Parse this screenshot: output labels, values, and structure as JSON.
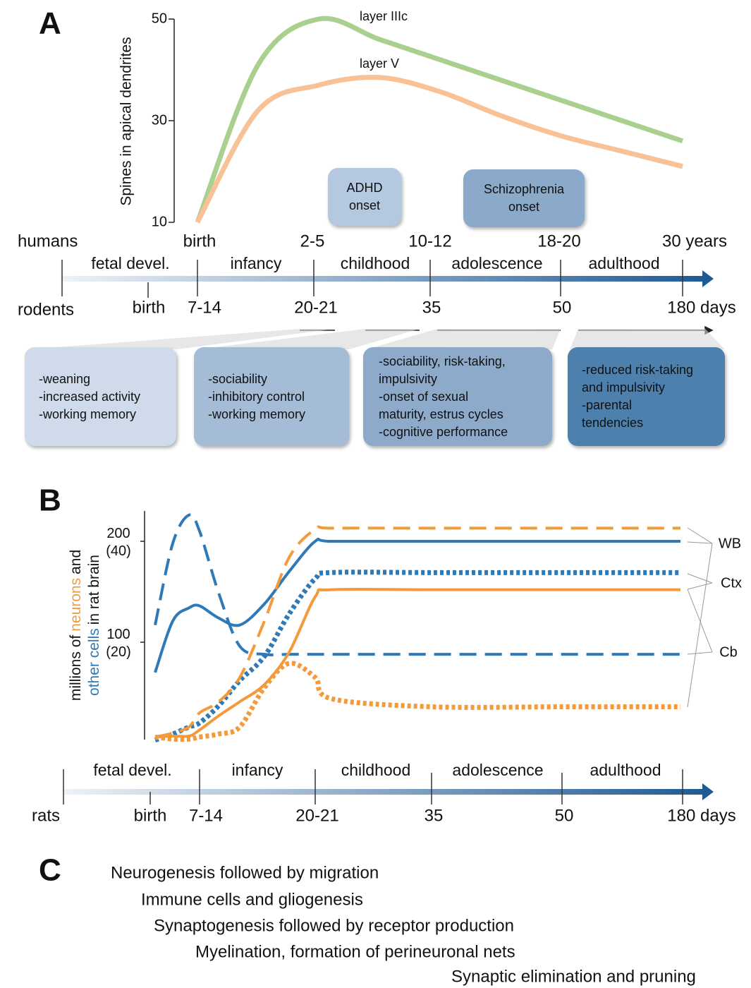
{
  "panel_labels": [
    "A",
    "B",
    "C"
  ],
  "chart_data": [
    {
      "type": "line",
      "ylabel": "Spines in apical dendrites",
      "ylim": [
        10,
        50
      ],
      "yticks": [
        10,
        30,
        50
      ],
      "categories": [
        "birth",
        null,
        "2-5",
        null,
        "10-12",
        null,
        "18-20",
        null,
        "30 years"
      ],
      "series": [
        {
          "name": "layer IIIc",
          "color": "#a9d08e",
          "values": [
            10,
            41,
            50,
            46,
            42,
            38,
            34,
            30,
            26
          ]
        },
        {
          "name": "layer V",
          "color": "#f8c196",
          "values": [
            10,
            32,
            37,
            38.5,
            35.7,
            31,
            27,
            24,
            21
          ]
        }
      ]
    },
    {
      "type": "line",
      "ylabel": [
        "millions of",
        "neurons",
        "and",
        "other cells",
        "in rat brain"
      ],
      "ylim": [
        0,
        230
      ],
      "yticks": [
        {
          "value": 100,
          "label": "100 (20)"
        },
        {
          "value": 200,
          "label": "200 (40)"
        }
      ],
      "categories": [
        "birth",
        null,
        null,
        "7-14",
        null,
        null,
        null,
        null,
        "20-21",
        null,
        "35",
        "50",
        "180 days"
      ],
      "series": [
        {
          "color": "#2e7ab8",
          "dash": "solid",
          "values": [
            70,
            121,
            134,
            136,
            124,
            117,
            138,
            170,
            200,
            200,
            200,
            200,
            200
          ]
        },
        {
          "color": "#2e7ab8",
          "dash": "dashed",
          "values": [
            117,
            198,
            226,
            210,
            149,
            96,
            88,
            88,
            88,
            88,
            88,
            88,
            88
          ]
        },
        {
          "color": "#2e7ab8",
          "dash": "dotted",
          "values": [
            3,
            9,
            16,
            20,
            37,
            62,
            86,
            128,
            163,
            169,
            169,
            169,
            169
          ]
        },
        {
          "color": "#f39a3a",
          "dash": "solid",
          "values": [
            6,
            7,
            7,
            13,
            27,
            41,
            58,
            90,
            145,
            152,
            152,
            152,
            152
          ]
        },
        {
          "color": "#f39a3a",
          "dash": "dashed",
          "values": [
            6,
            10,
            16,
            30,
            41,
            65,
            121,
            184,
            212,
            213,
            213,
            213,
            213
          ]
        },
        {
          "color": "#f39a3a",
          "dash": "dotted",
          "values": [
            6,
            4,
            4,
            6,
            9,
            16,
            55,
            79,
            65,
            44,
            36,
            36,
            36
          ]
        }
      ],
      "annotations": [
        "WB",
        "Ctx",
        "Cb"
      ]
    }
  ],
  "timeline_a": {
    "upper_row": "humans",
    "lower_row": "rodents",
    "stages": [
      "fetal devel.",
      "infancy",
      "childhood",
      "adolescence",
      "adulthood"
    ],
    "lower_labels": [
      "birth",
      "7-14",
      "20-21",
      "35",
      "50",
      "180 days"
    ]
  },
  "onset_boxes": [
    "ADHD onset",
    "Schizophrenia onset"
  ],
  "behavior_boxes": [
    [
      "-weaning",
      "-increased activity",
      "-working memory"
    ],
    [
      "-sociability",
      "-inhibitory control",
      "-working memory"
    ],
    [
      "-sociability, risk-taking,",
      "impulsivity",
      "-onset of sexual",
      "maturity, estrus cycles",
      "-cognitive performance"
    ],
    [
      "-reduced risk-taking",
      "and impulsivity",
      "-parental",
      "tendencies"
    ]
  ],
  "timeline_b": {
    "row": "rats",
    "stages": [
      "fetal devel.",
      "infancy",
      "childhood",
      "adolescence",
      "adulthood"
    ]
  },
  "processes": [
    "Neurogenesis followed by migration",
    "Immune cells and gliogenesis",
    "Synaptogenesis followed by receptor production",
    "Myelination, formation of perineuronal nets",
    "Synaptic elimination and pruning"
  ]
}
